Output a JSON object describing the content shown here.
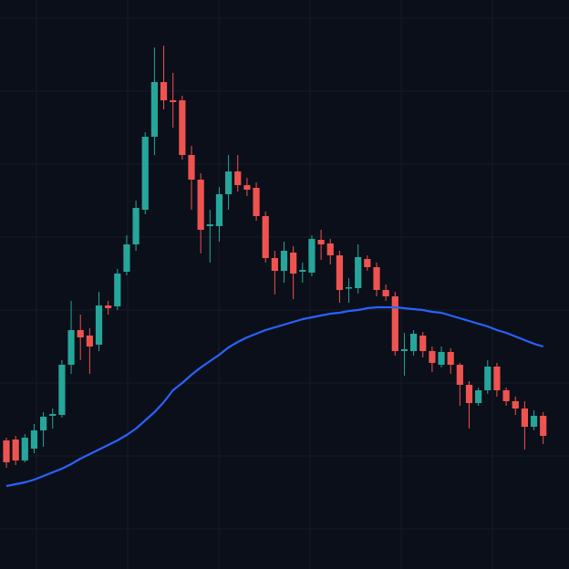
{
  "chart_data": {
    "type": "candlestick",
    "ylim": [
      0,
      624
    ],
    "up_color": "#26a69a",
    "down_color": "#ef5350",
    "open": [
      141,
      142,
      119,
      132,
      152,
      168,
      169,
      224,
      262,
      256,
      246,
      289,
      288,
      326,
      356,
      394,
      474,
      534,
      514,
      514,
      454,
      427,
      376,
      376,
      411,
      436,
      421,
      418,
      387,
      341,
      327,
      347,
      326,
      325,
      361,
      357,
      344,
      308,
      308,
      340,
      331,
      306,
      299,
      239,
      239,
      256,
      239,
      224,
      238,
      224,
      202,
      182,
      196,
      222,
      196,
      184,
      176,
      156,
      168
    ],
    "high": [
      144,
      146,
      148,
      159,
      172,
      176,
      229,
      294,
      279,
      264,
      304,
      294,
      329,
      366,
      404,
      479,
      572,
      574,
      544,
      519,
      464,
      434,
      394,
      419,
      454,
      454,
      429,
      424,
      392,
      349,
      359,
      354,
      336,
      366,
      372,
      362,
      349,
      319,
      356,
      344,
      336,
      312,
      304,
      259,
      262,
      260,
      244,
      244,
      242,
      226,
      206,
      199,
      229,
      226,
      199,
      189,
      184,
      174,
      172
    ],
    "low": [
      111,
      114,
      117,
      127,
      134,
      154,
      166,
      214,
      229,
      214,
      239,
      279,
      284,
      322,
      349,
      389,
      454,
      504,
      484,
      449,
      394,
      346,
      336,
      359,
      394,
      414,
      409,
      382,
      336,
      301,
      314,
      296,
      314,
      321,
      339,
      334,
      292,
      292,
      302,
      327,
      299,
      294,
      234,
      212,
      234,
      232,
      216,
      221,
      214,
      179,
      154,
      179,
      192,
      189,
      179,
      169,
      131,
      152,
      137
    ],
    "close": [
      117,
      119,
      144,
      152,
      167,
      170,
      224,
      262,
      254,
      244,
      289,
      286,
      324,
      356,
      396,
      474,
      534,
      514,
      512,
      454,
      427,
      372,
      378,
      411,
      436,
      421,
      416,
      387,
      341,
      327,
      349,
      324,
      328,
      362,
      356,
      344,
      306,
      309,
      342,
      331,
      306,
      299,
      239,
      241,
      258,
      239,
      226,
      238,
      224,
      202,
      182,
      196,
      222,
      196,
      184,
      176,
      156,
      168,
      146
    ],
    "moving_average": {
      "color": "#2962ff",
      "values": [
        91,
        93,
        95,
        98,
        102,
        106,
        110,
        115,
        121,
        126,
        131,
        136,
        141,
        147,
        154,
        163,
        172,
        183,
        196,
        204,
        213,
        221,
        228,
        235,
        243,
        249,
        254,
        258,
        262,
        265,
        268,
        271,
        274,
        276,
        278,
        280,
        281,
        283,
        284,
        286,
        287,
        287,
        287,
        286,
        285,
        284,
        282,
        281,
        278,
        275,
        272,
        269,
        266,
        262,
        259,
        255,
        251,
        247,
        244
      ]
    }
  }
}
